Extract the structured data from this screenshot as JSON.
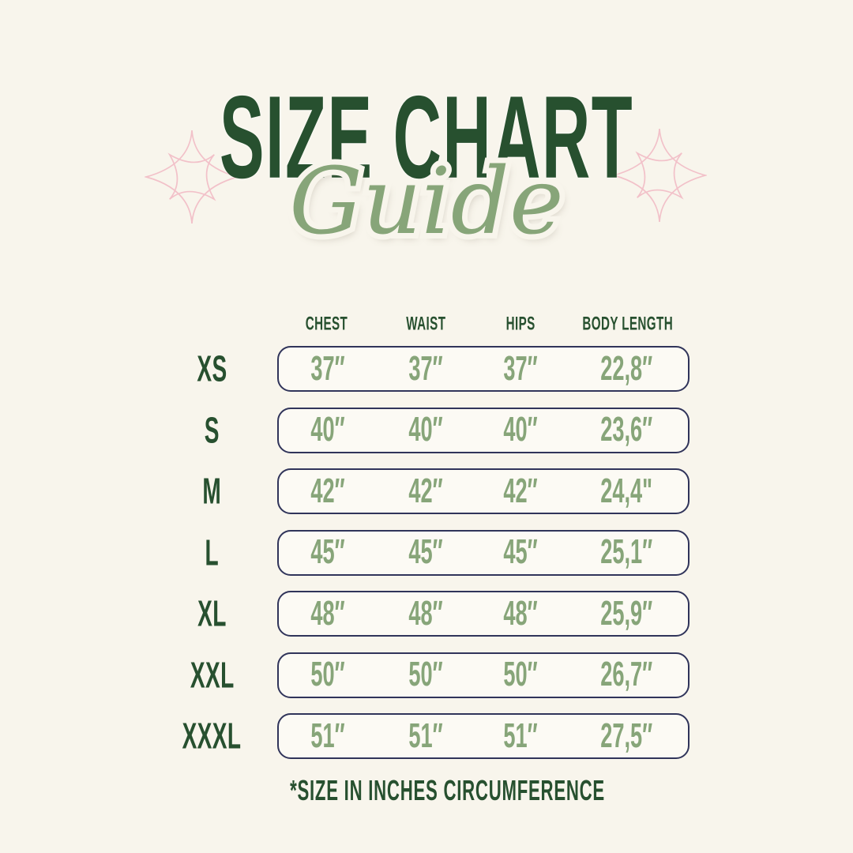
{
  "chart_data": {
    "type": "table",
    "title": "SIZE CHART",
    "subtitle": "Guide",
    "columns": [
      "CHEST",
      "WAIST",
      "HIPS",
      "BODY LENGTH"
    ],
    "row_labels": [
      "XS",
      "S",
      "M",
      "L",
      "XL",
      "XXL",
      "XXXL"
    ],
    "rows": [
      [
        "37″",
        "37″",
        "37″",
        "22,8″"
      ],
      [
        "40″",
        "40″",
        "40″",
        "23,6″"
      ],
      [
        "42″",
        "42″",
        "42″",
        "24,4\""
      ],
      [
        "45″",
        "45″",
        "45″",
        "25,1″"
      ],
      [
        "48″",
        "48″",
        "48″",
        "25,9″"
      ],
      [
        "50″",
        "50″",
        "50″",
        "26,7″"
      ],
      [
        "51″",
        "51″",
        "51″",
        "27,5″"
      ]
    ],
    "note": "*SIZE IN INCHES CIRCUMFERENCE",
    "units": "inches",
    "layout": {
      "grid": false,
      "row_borders": "rounded-rectangles"
    }
  },
  "decor": {
    "sparkle_left": "eight-point-sparkle-icon",
    "sparkle_right": "eight-point-sparkle-icon"
  },
  "colors": {
    "background": "#F8F5EC",
    "title_green": "#27502F",
    "value_sage": "#87A579",
    "row_border_navy": "#30345A",
    "sparkle_pink": "#F2C1C9",
    "row_fill": "#FCFAF4"
  }
}
